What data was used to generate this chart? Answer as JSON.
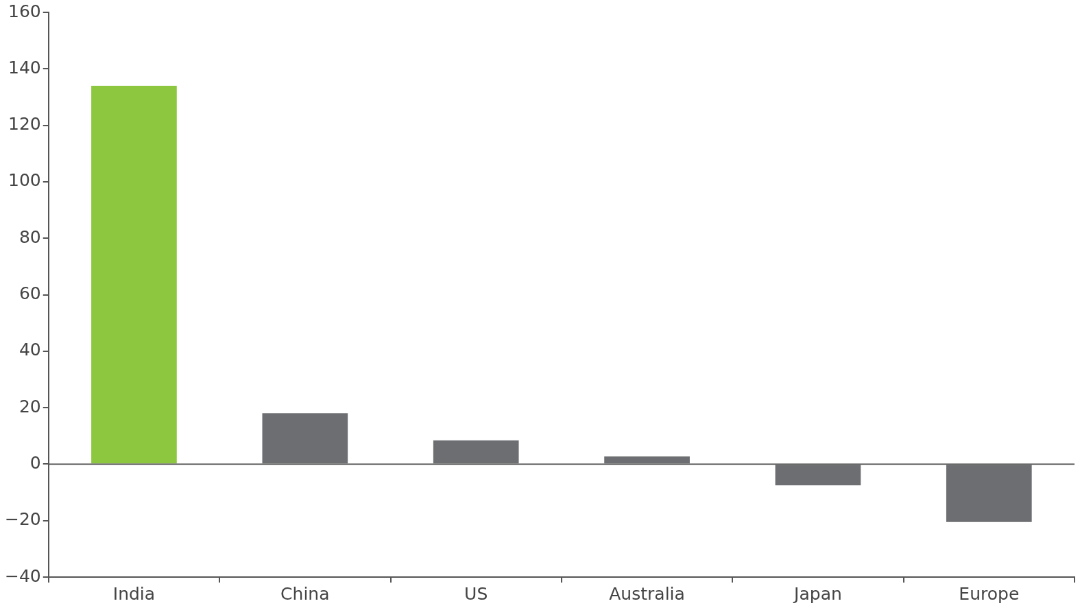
{
  "chart_data": {
    "type": "bar",
    "categories": [
      "India",
      "China",
      "US",
      "Australia",
      "Japan",
      "Europe"
    ],
    "values": [
      134,
      18,
      8.4,
      2.7,
      -7.5,
      -20.5
    ],
    "colors": [
      "#8dc63f",
      "#6d6e71",
      "#6d6e71",
      "#6d6e71",
      "#6d6e71",
      "#6d6e71"
    ],
    "ylim": [
      -40,
      160
    ],
    "yticks": [
      {
        "value": -40,
        "label": "−40"
      },
      {
        "value": -20,
        "label": "−20"
      },
      0,
      20,
      40,
      60,
      80,
      100,
      120,
      140,
      160
    ],
    "ref_lines": [
      {
        "axis": "y",
        "value": 0,
        "color": "#555555"
      }
    ]
  }
}
